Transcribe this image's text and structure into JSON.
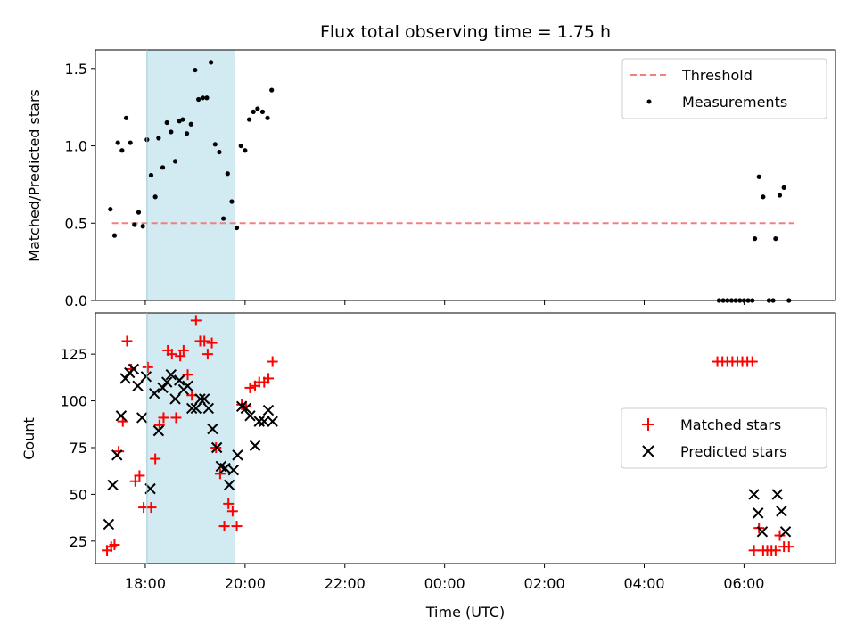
{
  "chart_data": [
    {
      "type": "scatter",
      "title": "Flux total observing time = 1.75 h",
      "xlabel": "",
      "ylabel": "Matched/Predicted stars",
      "xlim": [
        "17:00",
        "07:50"
      ],
      "ylim": [
        0,
        1.62
      ],
      "yticks": [
        0.0,
        0.5,
        1.0,
        1.5
      ],
      "ytick_labels": [
        "0.0",
        "0.5",
        "1.0",
        "1.5"
      ],
      "xticks": [
        "18:00",
        "20:00",
        "22:00",
        "00:00",
        "02:00",
        "04:00",
        "06:00"
      ],
      "shaded_span": [
        "18:02",
        "19:48"
      ],
      "shade_color": "#add8e6",
      "legend_position": "top-right",
      "threshold": {
        "name": "Threshold",
        "y": 0.5,
        "x_range": [
          "17:20",
          "07:00"
        ],
        "color": "#f08080",
        "style": "dashed"
      },
      "series": [
        {
          "name": "Measurements",
          "marker": "dot",
          "color": "#000000",
          "points": [
            [
              "17:18",
              0.59
            ],
            [
              "17:23",
              0.42
            ],
            [
              "17:27",
              1.02
            ],
            [
              "17:32",
              0.97
            ],
            [
              "17:37",
              1.18
            ],
            [
              "17:42",
              1.02
            ],
            [
              "17:47",
              0.49
            ],
            [
              "17:52",
              0.57
            ],
            [
              "17:57",
              0.48
            ],
            [
              "18:02",
              1.04
            ],
            [
              "18:07",
              0.81
            ],
            [
              "18:12",
              0.67
            ],
            [
              "18:16",
              1.05
            ],
            [
              "18:21",
              0.86
            ],
            [
              "18:26",
              1.15
            ],
            [
              "18:31",
              1.09
            ],
            [
              "18:36",
              0.9
            ],
            [
              "18:41",
              1.16
            ],
            [
              "18:45",
              1.17
            ],
            [
              "18:50",
              1.08
            ],
            [
              "18:55",
              1.14
            ],
            [
              "19:00",
              1.49
            ],
            [
              "19:04",
              1.3
            ],
            [
              "19:09",
              1.31
            ],
            [
              "19:14",
              1.31
            ],
            [
              "19:19",
              1.54
            ],
            [
              "19:24",
              1.01
            ],
            [
              "19:29",
              0.96
            ],
            [
              "19:34",
              0.53
            ],
            [
              "19:39",
              0.82
            ],
            [
              "19:44",
              0.64
            ],
            [
              "19:50",
              0.47
            ],
            [
              "19:55",
              1.0
            ],
            [
              "20:00",
              0.97
            ],
            [
              "20:05",
              1.17
            ],
            [
              "20:10",
              1.22
            ],
            [
              "20:15",
              1.24
            ],
            [
              "20:21",
              1.22
            ],
            [
              "20:27",
              1.18
            ],
            [
              "20:32",
              1.36
            ],
            [
              "05:30",
              0.0
            ],
            [
              "05:35",
              0.0
            ],
            [
              "05:40",
              0.0
            ],
            [
              "05:45",
              0.0
            ],
            [
              "05:50",
              0.0
            ],
            [
              "05:55",
              0.0
            ],
            [
              "06:00",
              0.0
            ],
            [
              "06:05",
              0.0
            ],
            [
              "06:10",
              0.0
            ],
            [
              "06:13",
              0.4
            ],
            [
              "06:18",
              0.8
            ],
            [
              "06:23",
              0.67
            ],
            [
              "06:30",
              0.0
            ],
            [
              "06:35",
              0.0
            ],
            [
              "06:38",
              0.4
            ],
            [
              "06:43",
              0.68
            ],
            [
              "06:48",
              0.73
            ],
            [
              "06:54",
              0.0
            ]
          ]
        }
      ]
    },
    {
      "type": "scatter",
      "title": "",
      "xlabel": "Time (UTC)",
      "ylabel": "Count",
      "xlim": [
        "17:00",
        "07:50"
      ],
      "ylim": [
        13,
        147
      ],
      "yticks": [
        25,
        50,
        75,
        100,
        125
      ],
      "ytick_labels": [
        "25",
        "50",
        "75",
        "100",
        "125"
      ],
      "xticks": [
        "18:00",
        "20:00",
        "22:00",
        "00:00",
        "02:00",
        "04:00",
        "06:00"
      ],
      "xtick_labels": [
        "18:00",
        "20:00",
        "22:00",
        "00:00",
        "02:00",
        "04:00",
        "06:00"
      ],
      "shaded_span": [
        "18:02",
        "19:48"
      ],
      "shade_color": "#add8e6",
      "legend_position": "center-right",
      "series": [
        {
          "name": "Matched stars",
          "marker": "plus",
          "color": "#ff0000",
          "points": [
            [
              "17:14",
              20
            ],
            [
              "17:19",
              22
            ],
            [
              "17:23",
              23
            ],
            [
              "17:28",
              73
            ],
            [
              "17:33",
              89
            ],
            [
              "17:38",
              132
            ],
            [
              "17:43",
              117
            ],
            [
              "17:48",
              57
            ],
            [
              "17:53",
              60
            ],
            [
              "17:58",
              43
            ],
            [
              "18:03",
              118
            ],
            [
              "18:07",
              43
            ],
            [
              "18:12",
              69
            ],
            [
              "18:17",
              87
            ],
            [
              "18:22",
              91
            ],
            [
              "18:27",
              127
            ],
            [
              "18:32",
              125
            ],
            [
              "18:37",
              91
            ],
            [
              "18:42",
              124
            ],
            [
              "18:46",
              127
            ],
            [
              "18:51",
              114
            ],
            [
              "18:56",
              103
            ],
            [
              "19:01",
              143
            ],
            [
              "19:06",
              132
            ],
            [
              "19:11",
              132
            ],
            [
              "19:15",
              125
            ],
            [
              "19:20",
              131
            ],
            [
              "19:25",
              75
            ],
            [
              "19:30",
              61
            ],
            [
              "19:35",
              33
            ],
            [
              "19:40",
              45
            ],
            [
              "19:45",
              41
            ],
            [
              "19:50",
              33
            ],
            [
              "19:56",
              98
            ],
            [
              "20:01",
              97
            ],
            [
              "20:06",
              107
            ],
            [
              "20:12",
              108
            ],
            [
              "20:17",
              110
            ],
            [
              "20:23",
              110
            ],
            [
              "20:28",
              112
            ],
            [
              "20:33",
              121
            ],
            [
              "05:28",
              121
            ],
            [
              "05:34",
              121
            ],
            [
              "05:40",
              121
            ],
            [
              "05:46",
              121
            ],
            [
              "05:52",
              121
            ],
            [
              "05:58",
              121
            ],
            [
              "06:04",
              121
            ],
            [
              "06:10",
              121
            ],
            [
              "06:12",
              20
            ],
            [
              "06:18",
              32
            ],
            [
              "06:23",
              20
            ],
            [
              "06:28",
              20
            ],
            [
              "06:33",
              20
            ],
            [
              "06:38",
              20
            ],
            [
              "06:43",
              28
            ],
            [
              "06:48",
              22
            ],
            [
              "06:54",
              22
            ]
          ]
        },
        {
          "name": "Predicted stars",
          "marker": "x",
          "color": "#000000",
          "points": [
            [
              "17:16",
              34
            ],
            [
              "17:21",
              55
            ],
            [
              "17:26",
              71
            ],
            [
              "17:31",
              92
            ],
            [
              "17:36",
              112
            ],
            [
              "17:41",
              115
            ],
            [
              "17:46",
              117
            ],
            [
              "17:51",
              108
            ],
            [
              "17:56",
              91
            ],
            [
              "18:01",
              113
            ],
            [
              "18:06",
              53
            ],
            [
              "18:11",
              104
            ],
            [
              "18:16",
              84
            ],
            [
              "18:21",
              107
            ],
            [
              "18:26",
              110
            ],
            [
              "18:31",
              114
            ],
            [
              "18:36",
              101
            ],
            [
              "18:41",
              111
            ],
            [
              "18:46",
              106
            ],
            [
              "18:51",
              108
            ],
            [
              "18:56",
              96
            ],
            [
              "19:01",
              96
            ],
            [
              "19:06",
              101
            ],
            [
              "19:11",
              101
            ],
            [
              "19:16",
              96
            ],
            [
              "19:21",
              85
            ],
            [
              "19:26",
              75
            ],
            [
              "19:31",
              65
            ],
            [
              "19:36",
              64
            ],
            [
              "19:41",
              55
            ],
            [
              "19:46",
              63
            ],
            [
              "19:51",
              71
            ],
            [
              "19:56",
              97
            ],
            [
              "20:01",
              96
            ],
            [
              "20:06",
              92
            ],
            [
              "20:12",
              76
            ],
            [
              "20:17",
              89
            ],
            [
              "20:23",
              89
            ],
            [
              "20:28",
              95
            ],
            [
              "20:33",
              89
            ],
            [
              "06:12",
              50
            ],
            [
              "06:17",
              40
            ],
            [
              "06:22",
              30
            ],
            [
              "06:40",
              50
            ],
            [
              "06:45",
              41
            ],
            [
              "06:50",
              30
            ]
          ]
        }
      ]
    }
  ]
}
